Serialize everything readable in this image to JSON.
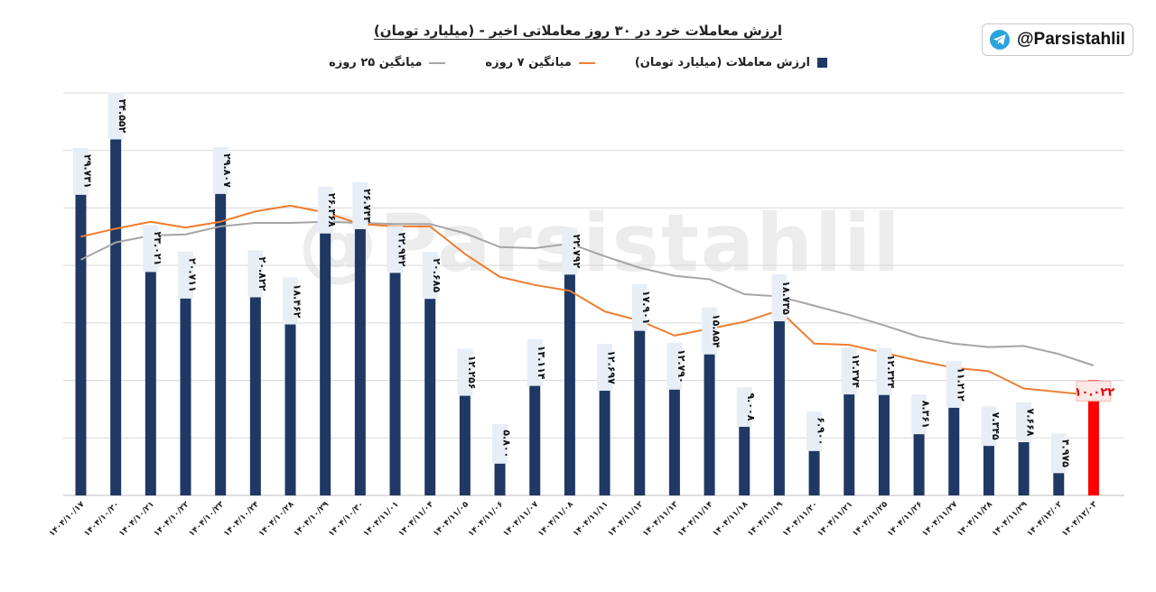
{
  "header": {
    "title": "ارزش معاملات خرد در ۳۰ روز معاملاتی اخیر - (میلیارد تومان)"
  },
  "brand": {
    "handle": "@Parsistahlil",
    "icon": "telegram-icon",
    "watermark": "@Parsistahlil"
  },
  "colors": {
    "bar": "#1f3864",
    "last_bar": "#ff0000",
    "ma7": "#ed7d31",
    "ma25": "#a5a5a5",
    "grid": "#d9d9d9",
    "label_bg": "#e7eef6"
  },
  "chart_data": {
    "type": "bar",
    "categories": [
      "۱۴۰۴/۱۰/۱۷",
      "۱۴۰۴/۱۰/۲۰",
      "۱۴۰۴/۱۰/۲۱",
      "۱۴۰۴/۱۰/۲۲",
      "۱۴۰۴/۱۰/۲۳",
      "۱۴۰۴/۱۰/۲۴",
      "۱۴۰۴/۱۰/۲۸",
      "۱۴۰۴/۱۰/۲۹",
      "۱۴۰۴/۱۰/۳۰",
      "۱۴۰۴/۱۱/۰۱",
      "۱۴۰۴/۱۱/۰۴",
      "۱۴۰۴/۱۱/۰۵",
      "۱۴۰۴/۱۱/۰۶",
      "۱۴۰۴/۱۱/۰۷",
      "۱۴۰۴/۱۱/۰۸",
      "۱۴۰۴/۱۱/۱۱",
      "۱۴۰۴/۱۱/۱۲",
      "۱۴۰۴/۱۱/۱۳",
      "۱۴۰۴/۱۱/۱۴",
      "۱۴۰۴/۱۱/۱۸",
      "۱۴۰۴/۱۱/۱۹",
      "۱۴۰۴/۱۱/۲۰",
      "۱۴۰۴/۱۱/۲۱",
      "۱۴۰۴/۱۱/۲۵",
      "۱۴۰۴/۱۱/۲۶",
      "۱۴۰۴/۱۱/۲۷",
      "۱۴۰۴/۱۱/۲۸",
      "۱۴۰۴/۱۱/۲۹",
      "۱۴۰۴/۱۲/۰۲",
      "۱۴۰۴/۱۲/۰۳"
    ],
    "legend": [
      "ارزش معاملات (میلیارد تومان)",
      "میانگین ۷ روزه",
      "میانگین ۲۵ روزه"
    ],
    "series": [
      {
        "name": "ارزش معاملات (میلیارد تومان)",
        "kind": "bar",
        "values": [
          29.731,
          34.552,
          23.021,
          20.711,
          29.807,
          20.822,
          18.462,
          26.368,
          26.743,
          22.942,
          20.685,
          12.256,
          5.8,
          13.114,
          22.792,
          12.697,
          17.901,
          12.79,
          15.854,
          9.008,
          18.735,
          6.9,
          12.374,
          12.324,
          8.361,
          11.212,
          7.345,
          7.668,
          4.975,
          10.022
        ],
        "labels": [
          "۲۹.۷۳۱",
          "۳۴.۵۵۲",
          "۲۳.۰۲۱",
          "۲۰.۷۱۱",
          "۲۹.۸۰۷",
          "۲۰.۸۲۲",
          "۱۸.۴۶۲",
          "۲۶.۳۶۸",
          "۲۶.۷۴۳",
          "۲۲.۹۴۲",
          "۲۰.۶۸۵",
          "۱۲.۲۵۶",
          "۵.۸۰۰",
          "۱۳.۱۱۴",
          "۲۲.۷۹۲",
          "۱۲.۶۹۷",
          "۱۷.۹۰۱",
          "۱۲.۷۹۰",
          "۱۵.۸۵۴",
          "۹.۰۰۸",
          "۱۸.۷۳۵",
          "۶.۹۰۰",
          "۱۲.۳۷۴",
          "۱۲.۳۲۴",
          "۸.۳۶۱",
          "۱۱.۲۱۲",
          "۷.۳۴۵",
          "۷.۶۶۸",
          "۴.۹۷۵",
          "۱۰.۰۲۲"
        ]
      },
      {
        "name": "میانگین ۷ روزه",
        "kind": "line",
        "values": [
          22.5,
          23.2,
          23.8,
          23.3,
          23.8,
          24.7,
          25.2,
          24.6,
          23.6,
          23.4,
          23.4,
          21.0,
          19.0,
          18.3,
          17.8,
          16.0,
          15.2,
          13.9,
          14.5,
          15.1,
          16.1,
          13.2,
          13.1,
          12.4,
          11.7,
          11.1,
          10.8,
          9.3,
          9.0,
          8.7
        ]
      },
      {
        "name": "میانگین ۲۵ روزه",
        "kind": "line",
        "values": [
          20.5,
          22.0,
          22.6,
          22.7,
          23.4,
          23.7,
          23.7,
          23.8,
          23.7,
          23.6,
          23.6,
          22.8,
          21.6,
          21.5,
          21.9,
          20.8,
          19.8,
          19.1,
          18.8,
          17.5,
          17.3,
          16.5,
          15.7,
          14.8,
          13.8,
          13.2,
          12.9,
          13.0,
          12.3,
          11.3
        ]
      }
    ],
    "ylim": [
      0,
      35
    ],
    "grid": true,
    "legend_position": "top-center"
  }
}
